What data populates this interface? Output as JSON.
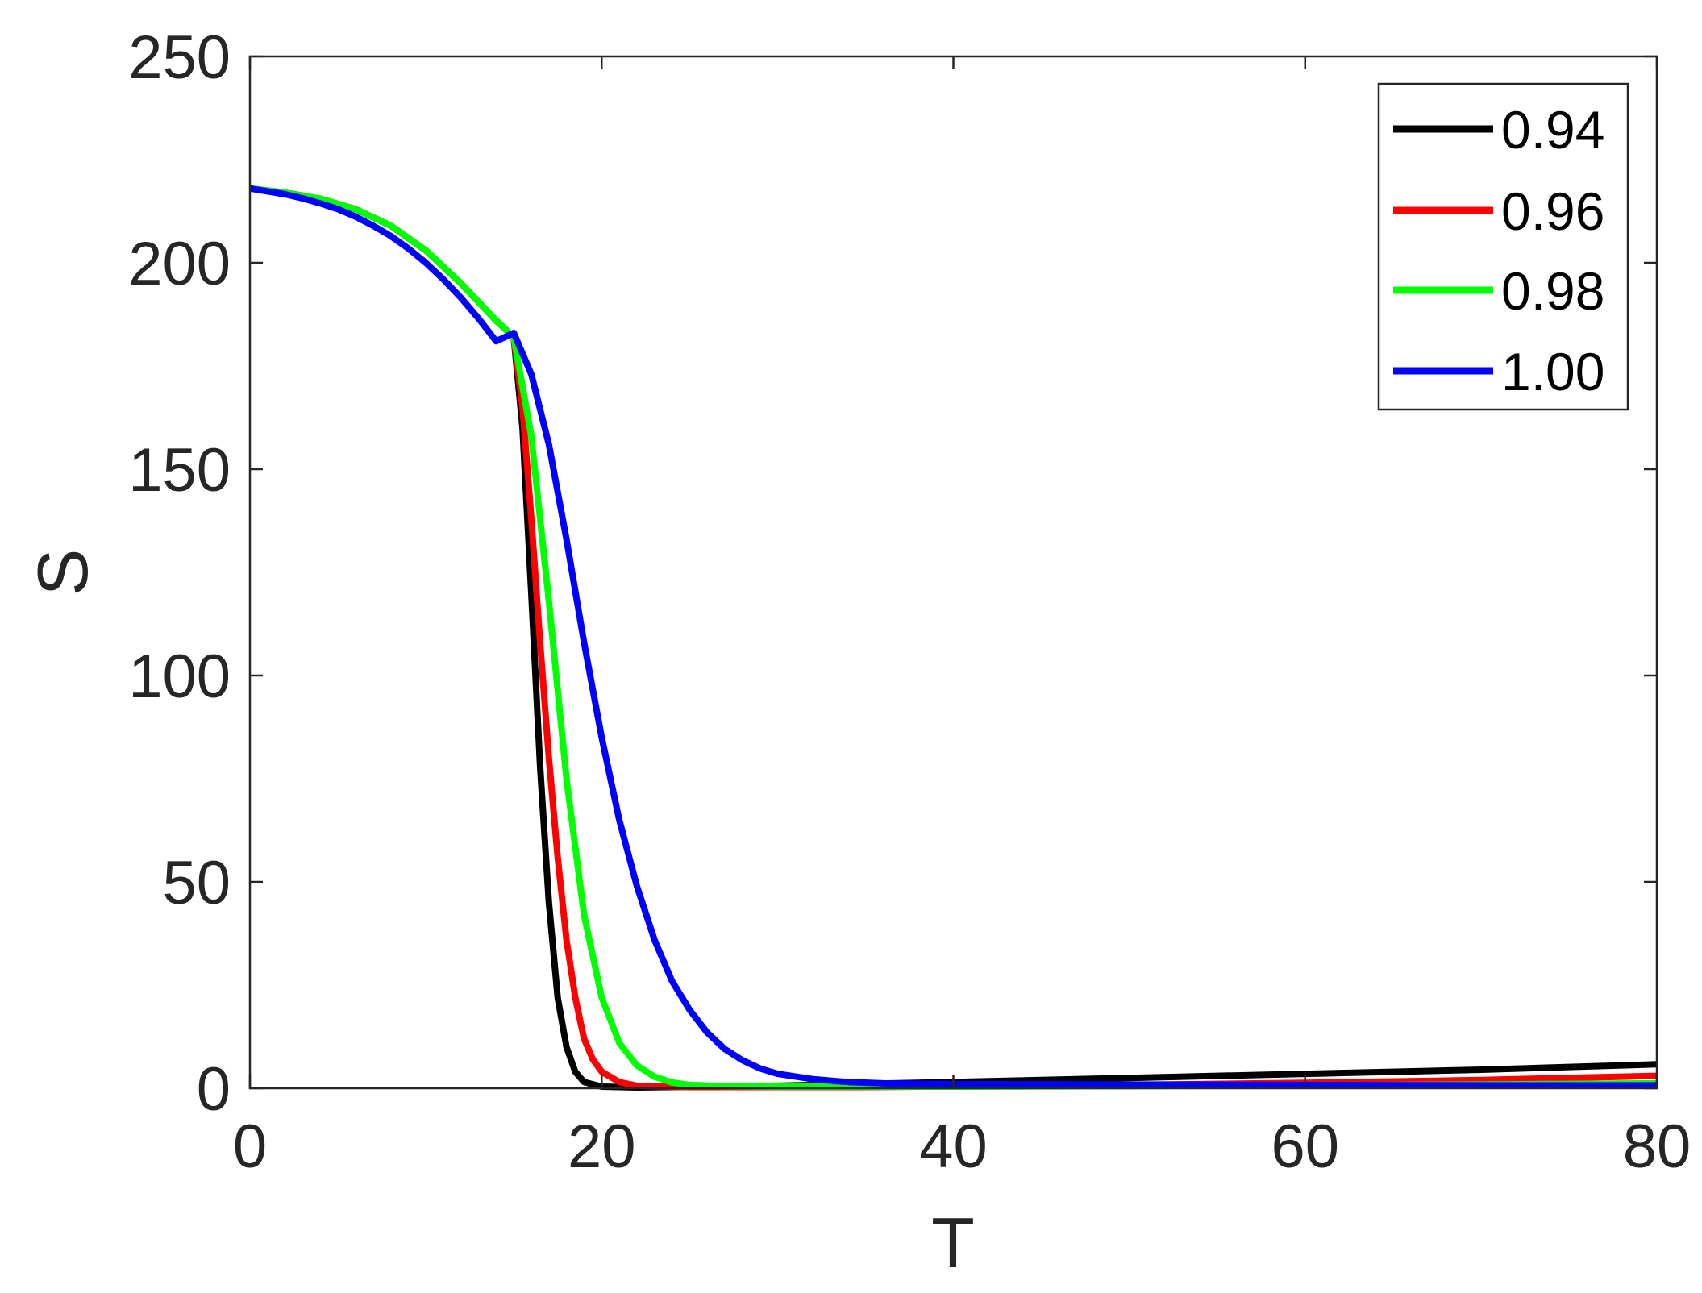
{
  "chart_data": {
    "type": "line",
    "xlabel": "T",
    "ylabel": "S",
    "xlim": [
      0,
      80
    ],
    "ylim": [
      0,
      250
    ],
    "xticks": [
      0,
      20,
      40,
      60,
      80
    ],
    "yticks": [
      0,
      50,
      100,
      150,
      200,
      250
    ],
    "grid": false,
    "legend_position": "top-right",
    "series": [
      {
        "name": "0.94",
        "color": "#000000",
        "points": [
          [
            0,
            218
          ],
          [
            2,
            217
          ],
          [
            4,
            215.5
          ],
          [
            6,
            213
          ],
          [
            8,
            209
          ],
          [
            10,
            203
          ],
          [
            12,
            195
          ],
          [
            14,
            186
          ],
          [
            15,
            182
          ],
          [
            15.5,
            160
          ],
          [
            16,
            120
          ],
          [
            16.5,
            78
          ],
          [
            17,
            45
          ],
          [
            17.5,
            22
          ],
          [
            18,
            10
          ],
          [
            18.5,
            4
          ],
          [
            19,
            1.5
          ],
          [
            20,
            0.4
          ],
          [
            22,
            0.2
          ],
          [
            30,
            0.6
          ],
          [
            40,
            1.5
          ],
          [
            50,
            2.5
          ],
          [
            60,
            3.5
          ],
          [
            70,
            4.5
          ],
          [
            80,
            5.8
          ]
        ]
      },
      {
        "name": "0.96",
        "color": "#ff0000",
        "points": [
          [
            0,
            218
          ],
          [
            2,
            217
          ],
          [
            4,
            215.5
          ],
          [
            6,
            213
          ],
          [
            8,
            209
          ],
          [
            10,
            203
          ],
          [
            12,
            195
          ],
          [
            14,
            186
          ],
          [
            15,
            182
          ],
          [
            15.5,
            165
          ],
          [
            16,
            138
          ],
          [
            16.5,
            108
          ],
          [
            17,
            80
          ],
          [
            17.5,
            56
          ],
          [
            18,
            36
          ],
          [
            18.5,
            22
          ],
          [
            19,
            12
          ],
          [
            19.5,
            7
          ],
          [
            20,
            4
          ],
          [
            21,
            1.5
          ],
          [
            22,
            0.6
          ],
          [
            25,
            0.3
          ],
          [
            35,
            0.3
          ],
          [
            50,
            0.8
          ],
          [
            60,
            1.3
          ],
          [
            70,
            2
          ],
          [
            80,
            3
          ]
        ]
      },
      {
        "name": "0.98",
        "color": "#00ff00",
        "points": [
          [
            0,
            218
          ],
          [
            2,
            217
          ],
          [
            4,
            215.5
          ],
          [
            6,
            213
          ],
          [
            8,
            209
          ],
          [
            10,
            203
          ],
          [
            12,
            195
          ],
          [
            14,
            186
          ],
          [
            15,
            182
          ],
          [
            16,
            158
          ],
          [
            17,
            118
          ],
          [
            18,
            75
          ],
          [
            19,
            42
          ],
          [
            20,
            22
          ],
          [
            21,
            11
          ],
          [
            22,
            5.5
          ],
          [
            23,
            2.8
          ],
          [
            24,
            1.4
          ],
          [
            25,
            0.8
          ],
          [
            27,
            0.5
          ],
          [
            30,
            0.4
          ],
          [
            40,
            0.4
          ],
          [
            50,
            0.5
          ],
          [
            60,
            0.7
          ],
          [
            70,
            0.9
          ],
          [
            80,
            1.2
          ]
        ]
      },
      {
        "name": "1.00",
        "color": "#0000ff",
        "points": [
          [
            0,
            218
          ],
          [
            1,
            217.3
          ],
          [
            2,
            216.6
          ],
          [
            3,
            215.6
          ],
          [
            4,
            214.4
          ],
          [
            5,
            213
          ],
          [
            6,
            211.2
          ],
          [
            7,
            209
          ],
          [
            8,
            206.5
          ],
          [
            9,
            203.5
          ],
          [
            10,
            200
          ],
          [
            11,
            196
          ],
          [
            12,
            191.5
          ],
          [
            13,
            186.5
          ],
          [
            14,
            181
          ],
          [
            15,
            183
          ],
          [
            16,
            173
          ],
          [
            17,
            156
          ],
          [
            18,
            133
          ],
          [
            19,
            108
          ],
          [
            20,
            85
          ],
          [
            21,
            65
          ],
          [
            22,
            49
          ],
          [
            23,
            36
          ],
          [
            24,
            26
          ],
          [
            25,
            19
          ],
          [
            26,
            13.5
          ],
          [
            27,
            9.5
          ],
          [
            28,
            6.8
          ],
          [
            29,
            4.8
          ],
          [
            30,
            3.5
          ],
          [
            32,
            2.2
          ],
          [
            34,
            1.5
          ],
          [
            36,
            1.2
          ],
          [
            40,
            1
          ],
          [
            50,
            0.9
          ],
          [
            60,
            0.8
          ],
          [
            70,
            0.7
          ],
          [
            80,
            0.7
          ]
        ]
      }
    ]
  }
}
